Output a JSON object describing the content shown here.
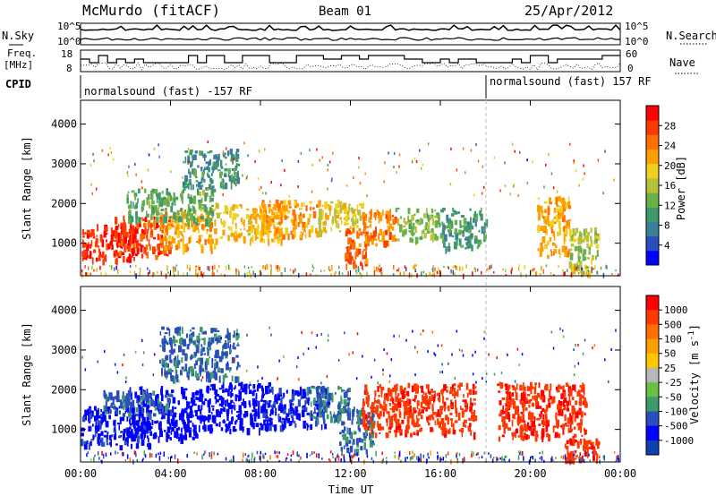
{
  "header": {
    "station": "McMurdo (fitACF)",
    "beam": "Beam 01",
    "date": "25/Apr/2012"
  },
  "side_labels": {
    "nsky": "N.Sky",
    "freq_line1": "Freq.",
    "freq_line2": "[MHz]",
    "cpid": "CPID",
    "nsearch": "N.Search",
    "nave": "Nave"
  },
  "noise_panel": {
    "left_ticks": [
      "10^5",
      "10^0"
    ],
    "right_ticks": [
      "10^5",
      "10^0"
    ]
  },
  "freq_panel": {
    "left_ticks": [
      "18",
      "8"
    ],
    "right_ticks": [
      "60",
      "0"
    ]
  },
  "cpid_panel": {
    "segments": [
      {
        "label": "normalsound (fast) -157 RF",
        "start_hour": 0
      },
      {
        "label": "normalsound (fast) 157 RF",
        "start_hour": 18.0
      }
    ]
  },
  "chart_data": [
    {
      "type": "heatmap",
      "title": "",
      "xlabel": "",
      "ylabel": "Slant Range [km]",
      "y_ticks": [
        "1000",
        "2000",
        "3000",
        "4000"
      ],
      "xlim_hours": [
        0,
        24
      ],
      "ylim_km": [
        180,
        4600
      ],
      "colorbar": {
        "label": "Power [dB]",
        "ticks": [
          "28",
          "24",
          "20",
          "16",
          "12",
          "8",
          "4"
        ],
        "range": [
          0,
          32
        ],
        "colors": [
          "#0000ff",
          "#2a4fbd",
          "#3a7f9a",
          "#3f9a6a",
          "#6ab04a",
          "#b8c03a",
          "#f0d020",
          "#ffa000",
          "#ff7000",
          "#ff3a00",
          "#ff0000"
        ]
      },
      "blobs": [
        {
          "h0": 0.0,
          "h1": 2.5,
          "r0": 600,
          "r1": 1500,
          "v": 29
        },
        {
          "h0": 1.5,
          "h1": 4.0,
          "r0": 700,
          "r1": 1700,
          "v": 27
        },
        {
          "h0": 3.5,
          "h1": 6.0,
          "r0": 900,
          "r1": 1900,
          "v": 22
        },
        {
          "h0": 2.0,
          "h1": 6.0,
          "r0": 1600,
          "r1": 2400,
          "v": 12
        },
        {
          "h0": 6.0,
          "h1": 9.0,
          "r0": 1100,
          "r1": 2000,
          "v": 20
        },
        {
          "h0": 8.0,
          "h1": 10.5,
          "r0": 1200,
          "r1": 2100,
          "v": 22
        },
        {
          "h0": 10.5,
          "h1": 12.5,
          "r0": 1300,
          "r1": 2100,
          "v": 18
        },
        {
          "h0": 11.7,
          "h1": 12.7,
          "r0": 450,
          "r1": 1400,
          "v": 26
        },
        {
          "h0": 12.5,
          "h1": 14.0,
          "r0": 1000,
          "r1": 1900,
          "v": 24
        },
        {
          "h0": 14.0,
          "h1": 16.0,
          "r0": 1100,
          "r1": 1900,
          "v": 14
        },
        {
          "h0": 16.0,
          "h1": 18.0,
          "r0": 900,
          "r1": 1900,
          "v": 10
        },
        {
          "h0": 20.3,
          "h1": 21.7,
          "r0": 700,
          "r1": 2200,
          "v": 22
        },
        {
          "h0": 21.7,
          "h1": 23.0,
          "r0": 300,
          "r1": 1400,
          "v": 16
        },
        {
          "h0": 4.5,
          "h1": 7.0,
          "r0": 2400,
          "r1": 3400,
          "v": 9
        }
      ]
    },
    {
      "type": "heatmap",
      "title": "",
      "xlabel": "Time UT",
      "ylabel": "Slant Range [km]",
      "x_ticks": [
        "00:00",
        "04:00",
        "08:00",
        "12:00",
        "16:00",
        "20:00",
        "00:00"
      ],
      "y_ticks": [
        "1000",
        "2000",
        "3000",
        "4000"
      ],
      "xlim_hours": [
        0,
        24
      ],
      "ylim_km": [
        180,
        4600
      ],
      "colorbar": {
        "label": "Velocity [m s^-1]",
        "ticks": [
          "1000",
          "500",
          "100",
          "50",
          "25",
          "-25",
          "-50",
          "-100",
          "-500",
          "-1000"
        ],
        "colors": [
          "#ff0000",
          "#ff3a00",
          "#ff7000",
          "#ffa000",
          "#ffc800",
          "#b8b8b8",
          "#6ac040",
          "#3f9a6a",
          "#2a4fbd",
          "#0000ff",
          "#1040b0"
        ]
      },
      "blobs": [
        {
          "h0": 0.0,
          "h1": 3.0,
          "r0": 600,
          "r1": 1600,
          "v": -400
        },
        {
          "h0": 2.0,
          "h1": 5.5,
          "r0": 800,
          "r1": 2100,
          "v": -600
        },
        {
          "h0": 1.0,
          "h1": 4.0,
          "r0": 1400,
          "r1": 2000,
          "v": -80
        },
        {
          "h0": 5.5,
          "h1": 8.5,
          "r0": 1000,
          "r1": 2200,
          "v": -700
        },
        {
          "h0": 8.0,
          "h1": 11.0,
          "r0": 1100,
          "r1": 2100,
          "v": -300
        },
        {
          "h0": 10.0,
          "h1": 12.0,
          "r0": 1300,
          "r1": 2100,
          "v": -60
        },
        {
          "h0": 11.5,
          "h1": 13.0,
          "r0": 500,
          "r1": 1600,
          "v": -80
        },
        {
          "h0": 12.5,
          "h1": 17.5,
          "r0": 900,
          "r1": 2200,
          "v": 150
        },
        {
          "h0": 18.5,
          "h1": 22.5,
          "r0": 800,
          "r1": 2200,
          "v": 200
        },
        {
          "h0": 21.5,
          "h1": 23.0,
          "r0": 250,
          "r1": 800,
          "v": 150
        },
        {
          "h0": 3.5,
          "h1": 7.0,
          "r0": 2300,
          "r1": 3600,
          "v": -90
        }
      ]
    }
  ]
}
